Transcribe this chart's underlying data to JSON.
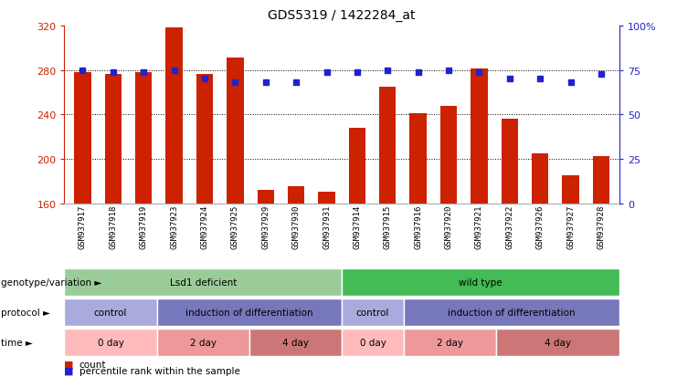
{
  "title": "GDS5319 / 1422284_at",
  "samples": [
    "GSM937917",
    "GSM937918",
    "GSM937919",
    "GSM937923",
    "GSM937924",
    "GSM937925",
    "GSM937929",
    "GSM937930",
    "GSM937931",
    "GSM937914",
    "GSM937915",
    "GSM937916",
    "GSM937920",
    "GSM937921",
    "GSM937922",
    "GSM937926",
    "GSM937927",
    "GSM937928"
  ],
  "count_values": [
    278,
    276,
    278,
    318,
    276,
    291,
    172,
    175,
    170,
    228,
    265,
    241,
    248,
    281,
    236,
    205,
    185,
    202
  ],
  "percentile_values": [
    75,
    74,
    74,
    75,
    70,
    68,
    68,
    68,
    74,
    74,
    75,
    74,
    75,
    74,
    70,
    70,
    68,
    73
  ],
  "ymin": 160,
  "ymax": 320,
  "yticks": [
    160,
    200,
    240,
    280,
    320
  ],
  "y2ticks": [
    0,
    25,
    50,
    75,
    100
  ],
  "y2labels": [
    "0",
    "25",
    "50",
    "75",
    "100%"
  ],
  "bar_color": "#cc2200",
  "dot_color": "#2222cc",
  "background_color": "#ffffff",
  "plot_bg_color": "#ffffff",
  "genotype_groups": [
    {
      "label": "Lsd1 deficient",
      "start": 0,
      "end": 9,
      "color": "#99cc99"
    },
    {
      "label": "wild type",
      "start": 9,
      "end": 18,
      "color": "#44bb55"
    }
  ],
  "protocol_groups": [
    {
      "label": "control",
      "start": 0,
      "end": 3,
      "color": "#aaaadd"
    },
    {
      "label": "induction of differentiation",
      "start": 3,
      "end": 9,
      "color": "#7777bb"
    },
    {
      "label": "control",
      "start": 9,
      "end": 11,
      "color": "#aaaadd"
    },
    {
      "label": "induction of differentiation",
      "start": 11,
      "end": 18,
      "color": "#7777bb"
    }
  ],
  "time_groups": [
    {
      "label": "0 day",
      "start": 0,
      "end": 3,
      "color": "#ffbbbb"
    },
    {
      "label": "2 day",
      "start": 3,
      "end": 6,
      "color": "#ee9999"
    },
    {
      "label": "4 day",
      "start": 6,
      "end": 9,
      "color": "#cc7777"
    },
    {
      "label": "0 day",
      "start": 9,
      "end": 11,
      "color": "#ffbbbb"
    },
    {
      "label": "2 day",
      "start": 11,
      "end": 14,
      "color": "#ee9999"
    },
    {
      "label": "4 day",
      "start": 14,
      "end": 18,
      "color": "#cc7777"
    }
  ],
  "row_labels": [
    "genotype/variation",
    "protocol",
    "time"
  ],
  "title_fontsize": 10,
  "axis_fontsize": 8,
  "tick_fontsize": 8
}
